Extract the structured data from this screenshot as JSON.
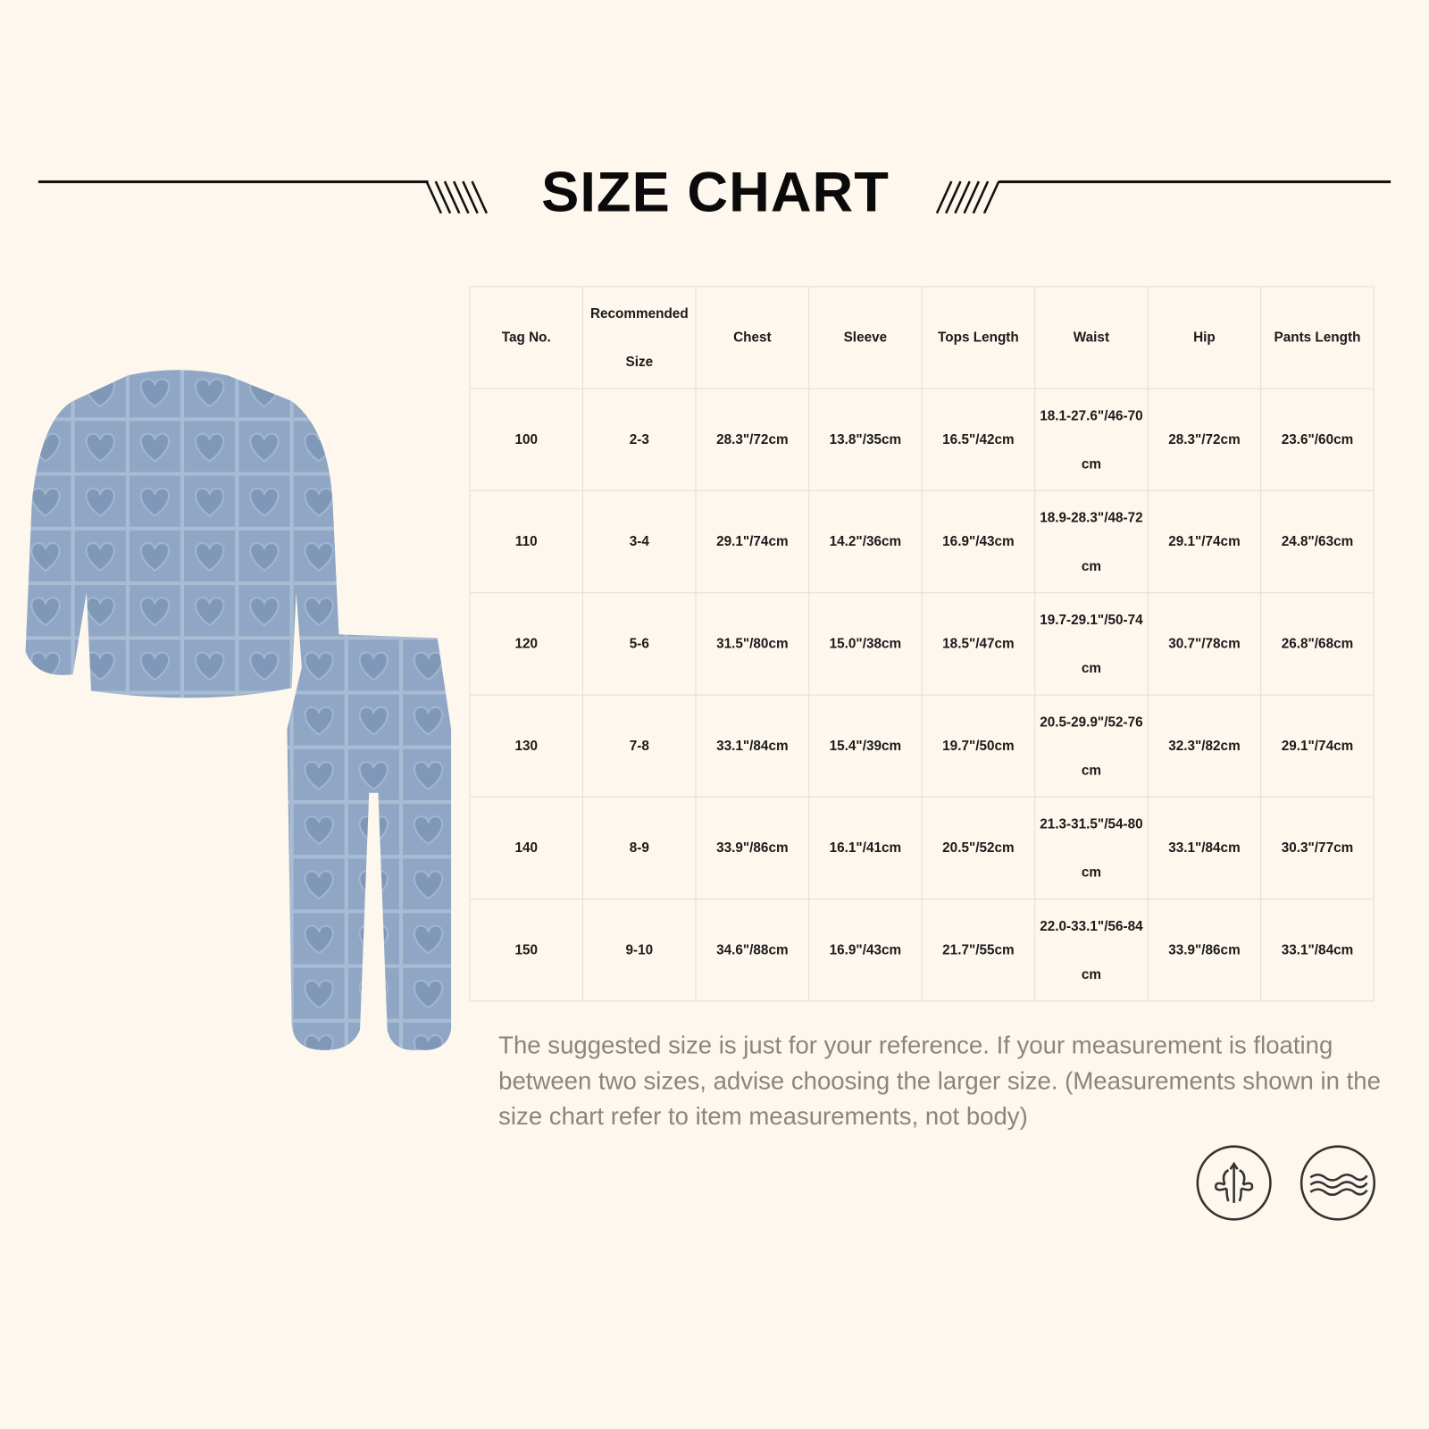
{
  "title": "SIZE CHART",
  "table": {
    "headers": [
      "Tag No.",
      "Recommended Size",
      "Chest",
      "Sleeve",
      "Tops Length",
      "Waist",
      "Hip",
      "Pants Length"
    ],
    "rows": [
      [
        "100",
        "2-3",
        "28.3\"/72cm",
        "13.8\"/35cm",
        "16.5\"/42cm",
        "18.1-27.6\"/46-70cm",
        "28.3\"/72cm",
        "23.6\"/60cm"
      ],
      [
        "110",
        "3-4",
        "29.1\"/74cm",
        "14.2\"/36cm",
        "16.9\"/43cm",
        "18.9-28.3\"/48-72cm",
        "29.1\"/74cm",
        "24.8\"/63cm"
      ],
      [
        "120",
        "5-6",
        "31.5\"/80cm",
        "15.0\"/38cm",
        "18.5\"/47cm",
        "19.7-29.1\"/50-74cm",
        "30.7\"/78cm",
        "26.8\"/68cm"
      ],
      [
        "130",
        "7-8",
        "33.1\"/84cm",
        "15.4\"/39cm",
        "19.7\"/50cm",
        "20.5-29.9\"/52-76cm",
        "32.3\"/82cm",
        "29.1\"/74cm"
      ],
      [
        "140",
        "8-9",
        "33.9\"/86cm",
        "16.1\"/41cm",
        "20.5\"/52cm",
        "21.3-31.5\"/54-80cm",
        "33.1\"/84cm",
        "30.3\"/77cm"
      ],
      [
        "150",
        "9-10",
        "34.6\"/88cm",
        "16.9\"/43cm",
        "21.7\"/55cm",
        "22.0-33.1\"/56-84cm",
        "33.9\"/86cm",
        "33.1\"/84cm"
      ]
    ]
  },
  "note": "The suggested size is just for your reference. If your measurement is floating between two sizes, advise choosing the larger size. (Measurements shown in the size chart refer to item measurements, not body)",
  "icons": [
    "breathable-fabric-icon",
    "soft-wave-icon"
  ],
  "colors": {
    "background": "#fdf7ee",
    "garment": "#8ea6c4",
    "text": "#1a1a1a",
    "note": "#8a8580"
  }
}
